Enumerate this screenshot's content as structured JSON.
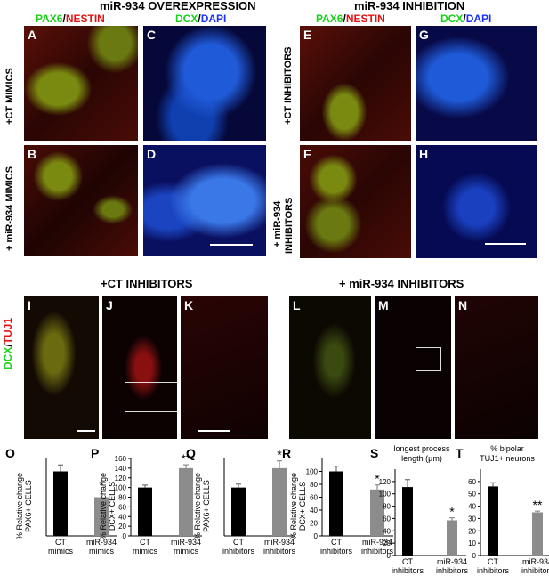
{
  "headers": {
    "overexpression": "miR-934 OVEREXPRESSION",
    "inhibition": "miR-934 INHIBITION",
    "ct_inhibitors_top": "+CT INHIBITORS",
    "mir_inhibitors_top": "+ miR-934 INHIBITORS"
  },
  "stain_labels": {
    "pax6": "PAX6",
    "slash": "/",
    "nestin": "NESTIN",
    "dcx": "DCX",
    "dapi": "DAPI",
    "tuj1": "TUJ1"
  },
  "row_labels": {
    "ct_mimics": "+CT MIMICS",
    "mir_mimics": "+ miR-934 MIMICS",
    "ct_inhibitors": "+CT INHIBITORS",
    "mir_inhibitors_1": "+ miR-934",
    "mir_inhibitors_2": "INHIBITORS"
  },
  "panels": {
    "A": "A",
    "B": "B",
    "C": "C",
    "D": "D",
    "E": "E",
    "F": "F",
    "G": "G",
    "H": "H",
    "I": "I",
    "J": "J",
    "K": "K",
    "L": "L",
    "M": "M",
    "N": "N"
  },
  "colors": {
    "green": "#19d219",
    "red": "#e01414",
    "blue": "#1a33ff",
    "bar_black": "#000000",
    "bar_gray": "#8c8c8c"
  },
  "chart_data": [
    {
      "letter": "O",
      "type": "bar",
      "ylabel": [
        "% Relative change",
        "PAX6+ CELLS"
      ],
      "ylim": [
        0,
        120
      ],
      "yticks": [],
      "categories": [
        [
          "CT",
          "mimics"
        ],
        [
          "miR-934",
          "mimics"
        ]
      ],
      "values": [
        100,
        60
      ],
      "errors": [
        10,
        10
      ],
      "sig": [
        "",
        "*"
      ],
      "title": []
    },
    {
      "letter": "P",
      "type": "bar",
      "ylabel": [
        "% Relative change",
        "DCX+ CELLS"
      ],
      "ylim": [
        0,
        160
      ],
      "yticks": [
        0,
        20,
        40,
        60,
        80,
        100,
        120,
        140,
        160
      ],
      "categories": [
        [
          "CT",
          "mimics"
        ],
        [
          "miR-934",
          "mimics"
        ]
      ],
      "values": [
        100,
        140
      ],
      "errors": [
        5,
        7
      ],
      "sig": [
        "",
        "**"
      ],
      "title": []
    },
    {
      "letter": "Q",
      "type": "bar",
      "ylabel": [
        "% Relative change",
        "PAX6+ CELLS"
      ],
      "ylim": [
        0,
        160
      ],
      "yticks": [],
      "categories": [
        [
          "CT",
          "inhibitors"
        ],
        [
          "miR-934",
          "inhibitors"
        ]
      ],
      "values": [
        100,
        140
      ],
      "errors": [
        7,
        15
      ],
      "sig": [
        "",
        "*"
      ],
      "title": []
    },
    {
      "letter": "R",
      "type": "bar",
      "ylabel": [
        "% Relative change",
        "DCX+ CELLS"
      ],
      "ylim": [
        0,
        120
      ],
      "yticks": [
        0,
        20,
        40,
        60,
        80,
        100
      ],
      "categories": [
        [
          "CT",
          "inhibitors"
        ],
        [
          "miR-934",
          "inhibitors"
        ]
      ],
      "values": [
        100,
        72
      ],
      "errors": [
        8,
        7
      ],
      "sig": [
        "",
        "*"
      ],
      "title": []
    },
    {
      "letter": "S",
      "type": "bar",
      "ylabel": [],
      "ylim": [
        0,
        140
      ],
      "yticks": [
        0,
        20,
        40,
        60,
        80,
        100,
        120
      ],
      "categories": [
        [
          "CT",
          "inhibitors"
        ],
        [
          "miR-934",
          "inhibitors"
        ]
      ],
      "values": [
        111,
        57
      ],
      "errors": [
        12,
        4
      ],
      "sig": [
        "",
        "*"
      ],
      "title": [
        "longest process",
        "length (µm)"
      ]
    },
    {
      "letter": "T",
      "type": "bar",
      "ylabel": [],
      "ylim": [
        0,
        70
      ],
      "yticks": [
        0,
        10,
        20,
        30,
        40,
        50,
        60
      ],
      "categories": [
        [
          "CT",
          "inhibitors"
        ],
        [
          "miR-934",
          "inhibitors"
        ]
      ],
      "values": [
        56,
        35
      ],
      "errors": [
        3,
        1
      ],
      "sig": [
        "",
        "**"
      ],
      "title": [
        "% bipolar",
        "TUJ1+ neurons"
      ]
    }
  ]
}
